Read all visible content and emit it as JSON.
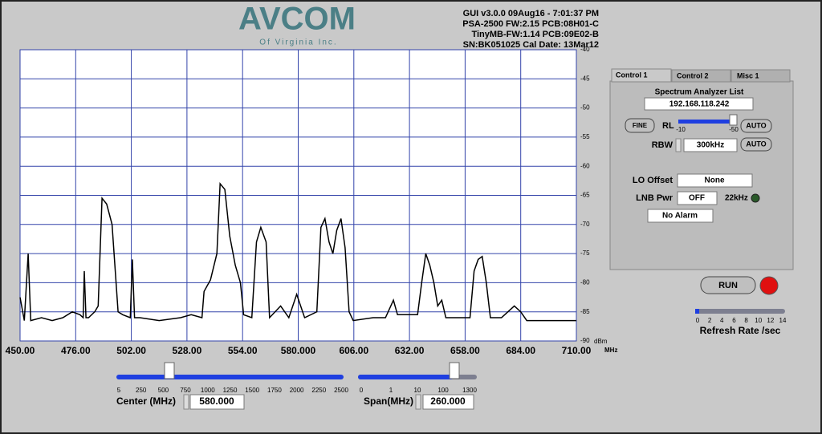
{
  "header": {
    "logo": "AVCOM",
    "logo_sub": "Of Virginia Inc.",
    "info": [
      "GUI v3.0.0  09Aug16 - 7:01:37 PM",
      "PSA-2500 FW:2.15 PCB:08H01-C",
      "TinyMB-FW:1.14  PCB:09E02-B",
      "SN:BK051025  Cal Date: 13Mar12"
    ]
  },
  "chart_data": {
    "type": "line",
    "color": "#000000",
    "grid": true,
    "x_unit": "MHz",
    "y_unit": "dBm",
    "xlim": [
      450,
      710
    ],
    "ylim": [
      -90,
      -40
    ],
    "xticks": [
      {
        "value": 450,
        "label": "450.00"
      },
      {
        "value": 476,
        "label": "476.00"
      },
      {
        "value": 502,
        "label": "502.00"
      },
      {
        "value": 528,
        "label": "528.00"
      },
      {
        "value": 554,
        "label": "554.00"
      },
      {
        "value": 580,
        "label": "580.000"
      },
      {
        "value": 606,
        "label": "606.00"
      },
      {
        "value": 632,
        "label": "632.00"
      },
      {
        "value": 658,
        "label": "658.00"
      },
      {
        "value": 684,
        "label": "684.00"
      },
      {
        "value": 710,
        "label": "710.00"
      }
    ],
    "yticks": [
      -40,
      -45,
      -50,
      -55,
      -60,
      -65,
      -70,
      -75,
      -80,
      -85,
      -90
    ],
    "x": [
      450,
      452,
      453.8,
      455,
      460,
      465,
      470,
      474.4,
      478,
      479.5,
      480,
      480.8,
      482,
      484.9,
      486.5,
      488.3,
      490.5,
      493,
      495.8,
      498,
      501.5,
      502.5,
      503.5,
      506,
      515,
      525,
      530,
      535,
      536,
      539,
      542,
      543.5,
      545.7,
      548,
      550.6,
      553,
      554.5,
      558.3,
      560.5,
      562.5,
      565,
      566.6,
      571.8,
      575.6,
      579.3,
      583,
      588.7,
      590.6,
      592.5,
      594.4,
      596.2,
      598,
      600,
      601.9,
      603.8,
      605.7,
      615,
      620.8,
      624.5,
      626.4,
      635.8,
      637.7,
      639.6,
      641.5,
      643.4,
      645.2,
      647.1,
      649,
      660.3,
      662.2,
      664.1,
      666,
      667.9,
      669.8,
      675,
      681,
      684,
      686.8,
      695,
      710
    ],
    "values": [
      -82.5,
      -86.5,
      -75,
      -86.5,
      -86,
      -86.5,
      -86,
      -85,
      -85.5,
      -86,
      -78,
      -86,
      -86,
      -85,
      -84,
      -65.5,
      -66.5,
      -70,
      -85,
      -85.5,
      -86,
      -76,
      -86,
      -86,
      -86.5,
      -86,
      -85.5,
      -86,
      -81.5,
      -79.5,
      -75,
      -63,
      -64,
      -72,
      -77,
      -80,
      -85.5,
      -86,
      -73,
      -70.5,
      -73,
      -86,
      -84,
      -86,
      -82,
      -86,
      -85,
      -70.5,
      -69,
      -73,
      -75,
      -71,
      -69,
      -74,
      -85,
      -86.5,
      -86,
      -86,
      -83,
      -85.5,
      -85.5,
      -80,
      -75,
      -77,
      -80,
      -84,
      -83,
      -86,
      -86,
      -78,
      -76,
      -75.5,
      -80,
      -86,
      -86,
      -84,
      -85,
      -86.5,
      -86.5,
      -86.5
    ]
  },
  "controls": {
    "tabs": [
      "Control 1",
      "Control 2",
      "Misc 1"
    ],
    "list_label": "Spectrum Analyzer List",
    "ip": "192.168.118.242",
    "fine": "FINE",
    "rl_label": "RL",
    "rl_min": -10,
    "rl_max": -50,
    "auto_rl": "AUTO",
    "rbw_label": "RBW",
    "rbw": "300kHz",
    "auto_rbw": "AUTO",
    "lo_offset_label": "LO Offset",
    "lo_offset": "None",
    "lnb_pwr_label": "LNB Pwr",
    "lnb_pwr": "OFF",
    "tone_label": "22kHz",
    "alarm": "No Alarm"
  },
  "run": {
    "button": "RUN"
  },
  "refresh": {
    "ticks": [
      0,
      2,
      4,
      6,
      8,
      10,
      12,
      14
    ],
    "label": "Refresh Rate /sec"
  },
  "center": {
    "ticks": [
      5,
      250,
      500,
      750,
      1000,
      1250,
      1500,
      1750,
      2000,
      2250,
      2500
    ],
    "label": "Center (MHz)",
    "value": "580.000"
  },
  "span": {
    "ticks": [
      0,
      1,
      10,
      100,
      1300
    ],
    "label": "Span(MHz)",
    "value": "260.000"
  }
}
